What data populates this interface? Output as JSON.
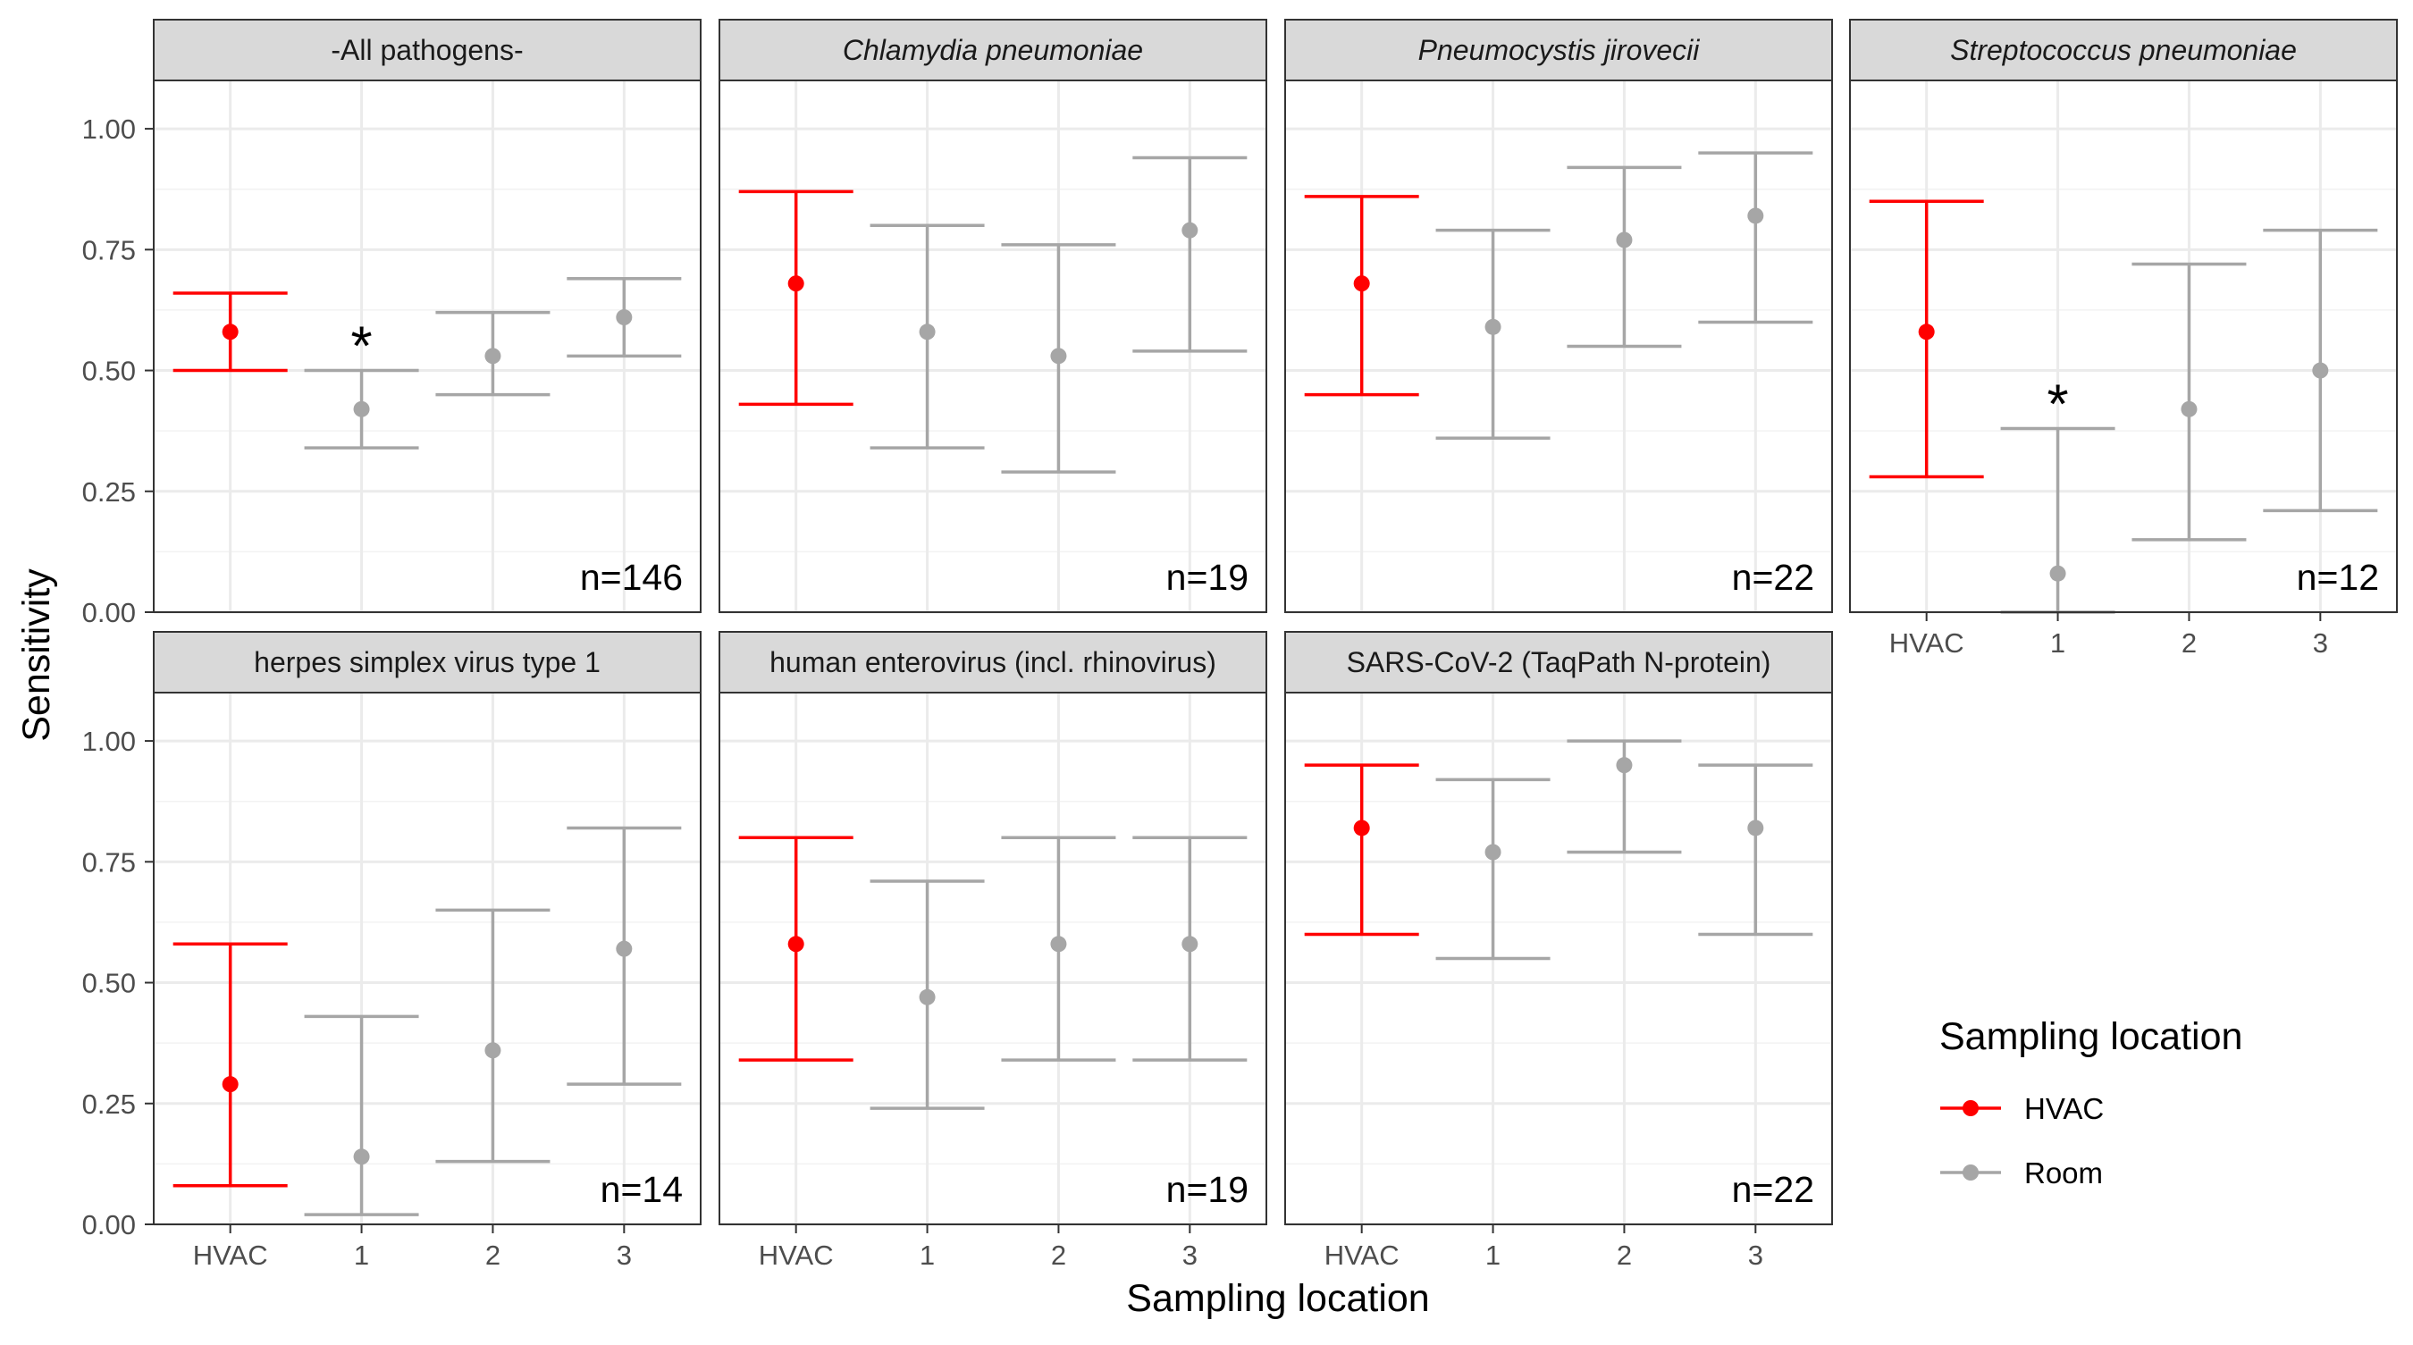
{
  "chart_data": {
    "type": "scatter",
    "subtype": "point-with-errorbars, faceted",
    "xlabel": "Sampling location",
    "ylabel": "Sensitivity",
    "categories": [
      "HVAC",
      "1",
      "2",
      "3"
    ],
    "ylim": [
      0,
      1.1
    ],
    "yticks": [
      "0.00",
      "0.25",
      "0.50",
      "0.75",
      "1.00"
    ],
    "grid": true,
    "legend": {
      "title": "Sampling location",
      "placement": "bottom-right",
      "items": [
        {
          "label": "HVAC",
          "color": "#ff0000"
        },
        {
          "label": "Room",
          "color": "#a6a6a6"
        }
      ]
    },
    "series_colors": {
      "HVAC": "#ff0000",
      "Room": "#a6a6a6"
    },
    "panels": [
      {
        "title": "-All pathogens-",
        "italic": false,
        "n_label": "n=146",
        "points": [
          {
            "x": "HVAC",
            "y": 0.58,
            "low": 0.5,
            "high": 0.66,
            "star": false
          },
          {
            "x": "1",
            "y": 0.42,
            "low": 0.34,
            "high": 0.5,
            "star": true
          },
          {
            "x": "2",
            "y": 0.53,
            "low": 0.45,
            "high": 0.62,
            "star": false
          },
          {
            "x": "3",
            "y": 0.61,
            "low": 0.53,
            "high": 0.69,
            "star": false
          }
        ]
      },
      {
        "title": "Chlamydia pneumoniae",
        "italic": true,
        "n_label": "n=19",
        "points": [
          {
            "x": "HVAC",
            "y": 0.68,
            "low": 0.43,
            "high": 0.87,
            "star": false
          },
          {
            "x": "1",
            "y": 0.58,
            "low": 0.34,
            "high": 0.8,
            "star": false
          },
          {
            "x": "2",
            "y": 0.53,
            "low": 0.29,
            "high": 0.76,
            "star": false
          },
          {
            "x": "3",
            "y": 0.79,
            "low": 0.54,
            "high": 0.94,
            "star": false
          }
        ]
      },
      {
        "title": "Pneumocystis jirovecii",
        "italic": true,
        "n_label": "n=22",
        "points": [
          {
            "x": "HVAC",
            "y": 0.68,
            "low": 0.45,
            "high": 0.86,
            "star": false
          },
          {
            "x": "1",
            "y": 0.59,
            "low": 0.36,
            "high": 0.79,
            "star": false
          },
          {
            "x": "2",
            "y": 0.77,
            "low": 0.55,
            "high": 0.92,
            "star": false
          },
          {
            "x": "3",
            "y": 0.82,
            "low": 0.6,
            "high": 0.95,
            "star": false
          }
        ]
      },
      {
        "title": "Streptococcus pneumoniae",
        "italic": true,
        "n_label": "n=12",
        "points": [
          {
            "x": "HVAC",
            "y": 0.58,
            "low": 0.28,
            "high": 0.85,
            "star": false
          },
          {
            "x": "1",
            "y": 0.08,
            "low": 0.0,
            "high": 0.38,
            "star": true
          },
          {
            "x": "2",
            "y": 0.42,
            "low": 0.15,
            "high": 0.72,
            "star": false
          },
          {
            "x": "3",
            "y": 0.5,
            "low": 0.21,
            "high": 0.79,
            "star": false
          }
        ]
      },
      {
        "title": "herpes simplex virus type 1",
        "italic": false,
        "n_label": "n=14",
        "points": [
          {
            "x": "HVAC",
            "y": 0.29,
            "low": 0.08,
            "high": 0.58,
            "star": false
          },
          {
            "x": "1",
            "y": 0.14,
            "low": 0.02,
            "high": 0.43,
            "star": false
          },
          {
            "x": "2",
            "y": 0.36,
            "low": 0.13,
            "high": 0.65,
            "star": false
          },
          {
            "x": "3",
            "y": 0.57,
            "low": 0.29,
            "high": 0.82,
            "star": false
          }
        ]
      },
      {
        "title": "human enterovirus (incl. rhinovirus)",
        "italic": false,
        "n_label": "n=19",
        "points": [
          {
            "x": "HVAC",
            "y": 0.58,
            "low": 0.34,
            "high": 0.8,
            "star": false
          },
          {
            "x": "1",
            "y": 0.47,
            "low": 0.24,
            "high": 0.71,
            "star": false
          },
          {
            "x": "2",
            "y": 0.58,
            "low": 0.34,
            "high": 0.8,
            "star": false
          },
          {
            "x": "3",
            "y": 0.58,
            "low": 0.34,
            "high": 0.8,
            "star": false
          }
        ]
      },
      {
        "title": "SARS-CoV-2 (TaqPath N-protein)",
        "italic": false,
        "n_label": "n=22",
        "points": [
          {
            "x": "HVAC",
            "y": 0.82,
            "low": 0.6,
            "high": 0.95,
            "star": false
          },
          {
            "x": "1",
            "y": 0.77,
            "low": 0.55,
            "high": 0.92,
            "star": false
          },
          {
            "x": "2",
            "y": 0.95,
            "low": 0.77,
            "high": 1.0,
            "star": false
          },
          {
            "x": "3",
            "y": 0.82,
            "low": 0.6,
            "high": 0.95,
            "star": false
          }
        ]
      }
    ],
    "star_symbol": "*"
  }
}
